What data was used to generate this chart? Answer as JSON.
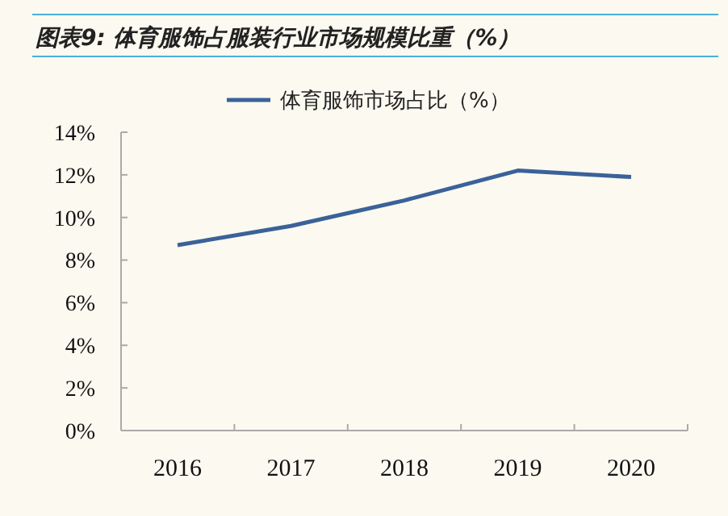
{
  "chart_data": {
    "type": "line",
    "title": "图表9: 体育服饰占服装行业市场规模比重（%）",
    "categories": [
      "2016",
      "2017",
      "2018",
      "2019",
      "2020"
    ],
    "series": [
      {
        "name": "体育服饰市场占比（%）",
        "color": "#3a6299",
        "values": [
          8.7,
          9.6,
          10.8,
          12.2,
          11.9
        ]
      }
    ],
    "ylim": [
      0,
      14
    ],
    "yticks": [
      {
        "value": 0,
        "label": "0%"
      },
      {
        "value": 2,
        "label": "2%"
      },
      {
        "value": 4,
        "label": "4%"
      },
      {
        "value": 6,
        "label": "6%"
      },
      {
        "value": 8,
        "label": "8%"
      },
      {
        "value": 10,
        "label": "10%"
      },
      {
        "value": 12,
        "label": "12%"
      },
      {
        "value": 14,
        "label": "14%"
      }
    ],
    "legend": "top",
    "grid": false
  }
}
